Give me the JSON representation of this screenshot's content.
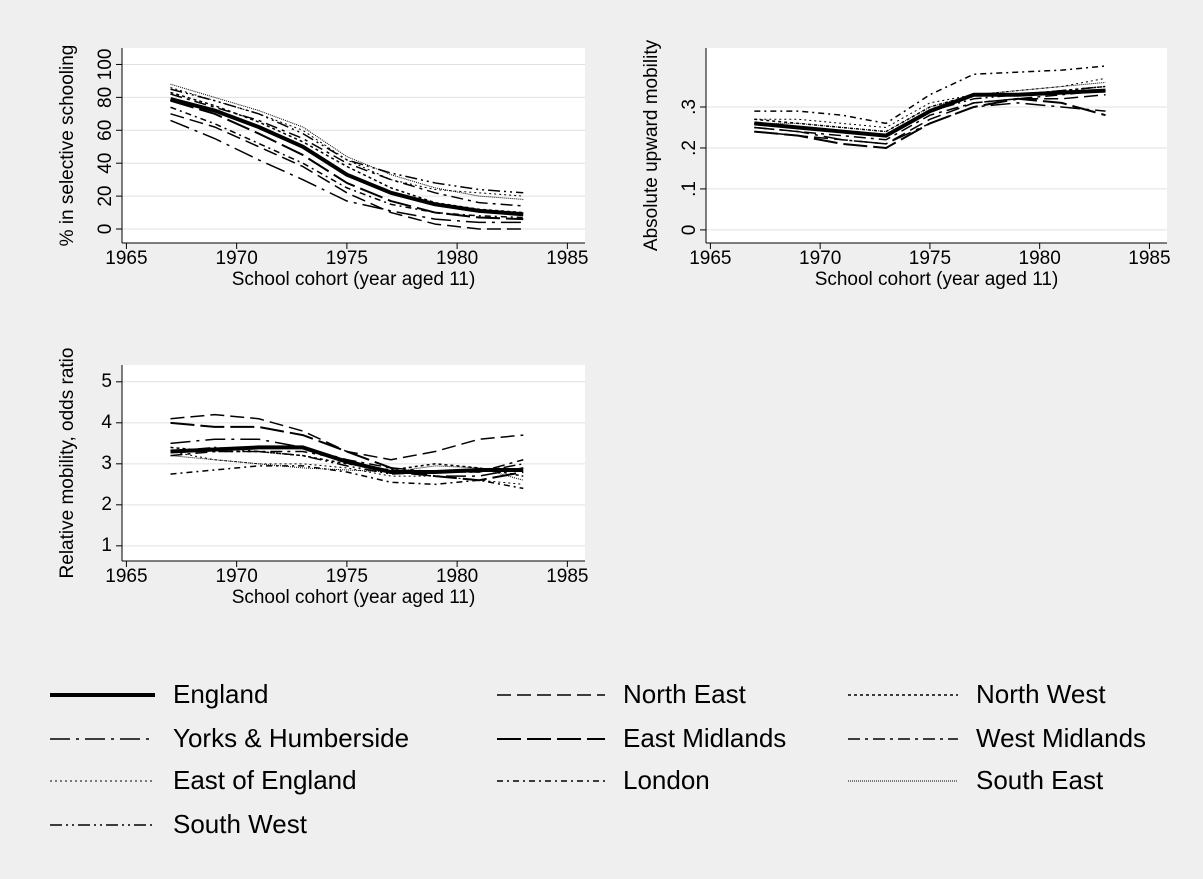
{
  "chart_data": [
    {
      "type": "line",
      "xlabel": "School cohort (year aged 11)",
      "ylabel": "% in selective schooling",
      "x": [
        1967,
        1969,
        1971,
        1973,
        1975,
        1977,
        1979,
        1981,
        1983
      ],
      "xlim": [
        1964.8,
        1985.8
      ],
      "xticks": [
        1965,
        1970,
        1975,
        1980,
        1985
      ],
      "ylim": [
        -8.5,
        110
      ],
      "yticks": [
        0,
        20,
        40,
        60,
        80,
        100
      ],
      "grid": true,
      "series": [
        {
          "name": "England",
          "color": "#000000",
          "width": 4,
          "dash": "none",
          "values": [
            79,
            72,
            62,
            50,
            33,
            22,
            15,
            11,
            9
          ]
        },
        {
          "name": "North East",
          "color": "#000000",
          "width": 1.5,
          "dash": "14,6",
          "values": [
            70,
            62,
            50,
            38,
            22,
            10,
            3,
            0,
            0
          ]
        },
        {
          "name": "North West",
          "color": "#000000",
          "width": 1.5,
          "dash": "3,3",
          "values": [
            83,
            75,
            65,
            53,
            38,
            25,
            16,
            12,
            10
          ]
        },
        {
          "name": "Yorks & Humberside",
          "color": "#000000",
          "width": 1.5,
          "dash": "20,6,3,6",
          "values": [
            66,
            55,
            42,
            30,
            17,
            11,
            6,
            4,
            4
          ]
        },
        {
          "name": "East Midlands",
          "color": "#000000",
          "width": 2,
          "dash": "24,6",
          "values": [
            78,
            70,
            58,
            45,
            28,
            17,
            10,
            7,
            6
          ]
        },
        {
          "name": "West Midlands",
          "color": "#000000",
          "width": 1.5,
          "dash": "12,5,3,5",
          "values": [
            82,
            74,
            66,
            55,
            40,
            30,
            22,
            16,
            14
          ]
        },
        {
          "name": "East of England",
          "color": "#000000",
          "width": 1,
          "dash": "2,3",
          "values": [
            86,
            78,
            70,
            60,
            42,
            30,
            24,
            22,
            20
          ]
        },
        {
          "name": "London",
          "color": "#000000",
          "width": 1.5,
          "dash": "6,4,2,4",
          "values": [
            74,
            64,
            52,
            40,
            25,
            15,
            10,
            8,
            7
          ]
        },
        {
          "name": "South East",
          "color": "#000000",
          "width": 1,
          "dash": "1,1",
          "values": [
            88,
            80,
            72,
            62,
            44,
            33,
            25,
            20,
            18
          ]
        },
        {
          "name": "South West",
          "color": "#000000",
          "width": 1.5,
          "dash": "12,4,2,4,2,4",
          "values": [
            85,
            78,
            70,
            58,
            42,
            34,
            28,
            24,
            22
          ]
        }
      ]
    },
    {
      "type": "line",
      "xlabel": "School cohort (year aged 11)",
      "ylabel": "Absolute upward mobility",
      "x": [
        1967,
        1969,
        1971,
        1973,
        1975,
        1977,
        1979,
        1981,
        1983
      ],
      "xlim": [
        1964.8,
        1985.8
      ],
      "xticks": [
        1965,
        1970,
        1975,
        1980,
        1985
      ],
      "ylim": [
        -0.032,
        0.444
      ],
      "yticks": [
        0,
        {
          "value": 0.1,
          "label": ".1"
        },
        {
          "value": 0.2,
          "label": ".2"
        },
        {
          "value": 0.3,
          "label": ".3"
        }
      ],
      "grid": true,
      "series": [
        {
          "values": [
            0.26,
            0.25,
            0.24,
            0.23,
            0.29,
            0.33,
            0.33,
            0.335,
            0.34
          ]
        },
        {
          "values": [
            0.24,
            0.23,
            0.22,
            0.21,
            0.27,
            0.31,
            0.32,
            0.32,
            0.33
          ]
        },
        {
          "values": [
            0.27,
            0.26,
            0.25,
            0.24,
            0.3,
            0.33,
            0.33,
            0.34,
            0.35
          ]
        },
        {
          "values": [
            0.25,
            0.24,
            0.22,
            0.21,
            0.26,
            0.3,
            0.31,
            0.3,
            0.29
          ]
        },
        {
          "values": [
            0.24,
            0.23,
            0.21,
            0.2,
            0.26,
            0.3,
            0.32,
            0.31,
            0.28
          ]
        },
        {
          "values": [
            0.25,
            0.24,
            0.23,
            0.22,
            0.28,
            0.31,
            0.32,
            0.33,
            0.34
          ]
        },
        {
          "values": [
            0.27,
            0.27,
            0.26,
            0.25,
            0.31,
            0.33,
            0.34,
            0.35,
            0.37
          ]
        },
        {
          "values": [
            0.29,
            0.29,
            0.28,
            0.26,
            0.33,
            0.38,
            0.385,
            0.39,
            0.4
          ]
        },
        {
          "values": [
            0.26,
            0.26,
            0.25,
            0.24,
            0.3,
            0.33,
            0.34,
            0.35,
            0.36
          ]
        },
        {
          "values": [
            0.26,
            0.25,
            0.24,
            0.23,
            0.29,
            0.32,
            0.33,
            0.34,
            0.35
          ]
        }
      ]
    },
    {
      "type": "line",
      "xlabel": "School cohort (year aged 11)",
      "ylabel": "Relative mobility, odds ratio",
      "x": [
        1967,
        1969,
        1971,
        1973,
        1975,
        1977,
        1979,
        1981,
        1983
      ],
      "xlim": [
        1964.8,
        1985.8
      ],
      "xticks": [
        1965,
        1970,
        1975,
        1980,
        1985
      ],
      "ylim": [
        0.63,
        5.41
      ],
      "yticks": [
        1,
        2,
        3,
        4,
        5
      ],
      "grid": true,
      "series": [
        {
          "values": [
            3.3,
            3.35,
            3.4,
            3.4,
            3.05,
            2.8,
            2.8,
            2.85,
            2.85
          ]
        },
        {
          "values": [
            4.1,
            4.2,
            4.1,
            3.8,
            3.3,
            3.1,
            3.3,
            3.6,
            3.7
          ]
        },
        {
          "values": [
            3.4,
            3.3,
            3.3,
            3.2,
            3.0,
            2.85,
            3.0,
            2.9,
            2.7
          ]
        },
        {
          "values": [
            3.5,
            3.6,
            3.6,
            3.4,
            3.1,
            2.8,
            2.7,
            2.7,
            2.9
          ]
        },
        {
          "values": [
            4.0,
            3.9,
            3.9,
            3.7,
            3.3,
            2.9,
            2.7,
            2.6,
            2.8
          ]
        },
        {
          "values": [
            3.2,
            3.3,
            3.3,
            3.3,
            3.1,
            2.9,
            2.8,
            2.8,
            3.1
          ]
        },
        {
          "values": [
            3.3,
            3.1,
            3.0,
            3.0,
            2.9,
            2.7,
            2.7,
            2.6,
            2.5
          ]
        },
        {
          "values": [
            2.75,
            2.85,
            2.95,
            2.95,
            2.8,
            2.55,
            2.5,
            2.6,
            2.4
          ]
        },
        {
          "values": [
            3.2,
            3.1,
            3.0,
            2.9,
            2.85,
            2.8,
            2.95,
            2.9,
            2.6
          ]
        },
        {
          "values": [
            3.3,
            3.4,
            3.3,
            3.2,
            2.95,
            2.75,
            2.8,
            2.8,
            3.0
          ]
        }
      ]
    }
  ]
}
